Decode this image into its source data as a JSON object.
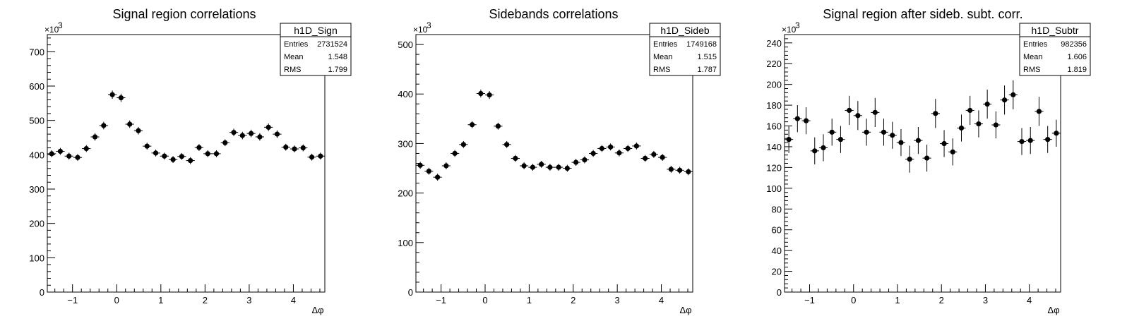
{
  "chart_data": [
    {
      "type": "scatter",
      "title": "Signal region correlations",
      "xlabel": "Δφ",
      "ylabel": "",
      "y_multiplier_label": "×10",
      "y_multiplier_exp": "3",
      "xlim": [
        -1.5708,
        4.7124
      ],
      "ylim": [
        0,
        750
      ],
      "yticks": [
        0,
        100,
        200,
        300,
        400,
        500,
        600,
        700
      ],
      "xticks": [
        -1,
        0,
        1,
        2,
        3,
        4
      ],
      "stats": {
        "name": "h1D_Sign",
        "entries": "2731524",
        "mean": "1.548",
        "rms": "1.799"
      },
      "series": [
        {
          "x": [
            -1.4726,
            -1.2763,
            -1.0799,
            -0.8836,
            -0.6872,
            -0.4909,
            -0.2945,
            -0.0982,
            0.0982,
            0.2945,
            0.4909,
            0.6872,
            0.8836,
            1.0799,
            1.2763,
            1.4726,
            1.669,
            1.8653,
            2.0617,
            2.258,
            2.4544,
            2.6507,
            2.8471,
            3.0434,
            3.2398,
            3.4361,
            3.6325,
            3.8288,
            4.0252,
            4.2215,
            4.4179,
            4.6142
          ],
          "y": [
            403,
            410,
            396,
            392,
            418,
            452,
            485,
            575,
            566,
            489,
            470,
            425,
            405,
            396,
            386,
            395,
            383,
            421,
            403,
            403,
            435,
            465,
            456,
            462,
            452,
            480,
            460,
            422,
            417,
            420,
            393,
            396
          ],
          "err": [
            10,
            10,
            10,
            10,
            10,
            11,
            11,
            12,
            12,
            11,
            11,
            10,
            10,
            10,
            10,
            10,
            10,
            10,
            10,
            10,
            10,
            11,
            11,
            11,
            11,
            11,
            11,
            10,
            10,
            10,
            10,
            10
          ]
        }
      ]
    },
    {
      "type": "scatter",
      "title": "Sidebands correlations",
      "xlabel": "Δφ",
      "ylabel": "",
      "y_multiplier_label": "×10",
      "y_multiplier_exp": "3",
      "xlim": [
        -1.5708,
        4.7124
      ],
      "ylim": [
        0,
        520
      ],
      "yticks": [
        0,
        100,
        200,
        300,
        400,
        500
      ],
      "xticks": [
        -1,
        0,
        1,
        2,
        3,
        4
      ],
      "stats": {
        "name": "h1D_Sideb",
        "entries": "1749168",
        "mean": "1.515",
        "rms": "1.787"
      },
      "series": [
        {
          "x": [
            -1.4726,
            -1.2763,
            -1.0799,
            -0.8836,
            -0.6872,
            -0.4909,
            -0.2945,
            -0.0982,
            0.0982,
            0.2945,
            0.4909,
            0.6872,
            0.8836,
            1.0799,
            1.2763,
            1.4726,
            1.669,
            1.8653,
            2.0617,
            2.258,
            2.4544,
            2.6507,
            2.8471,
            3.0434,
            3.2398,
            3.4361,
            3.6325,
            3.8288,
            4.0252,
            4.2215,
            4.4179,
            4.6142
          ],
          "y": [
            256,
            244,
            232,
            255,
            280,
            298,
            338,
            401,
            398,
            335,
            298,
            270,
            255,
            252,
            258,
            252,
            252,
            250,
            262,
            267,
            280,
            290,
            293,
            281,
            290,
            295,
            270,
            278,
            272,
            248,
            246,
            243
          ],
          "err": [
            7,
            7,
            7,
            7,
            7,
            7,
            7,
            8,
            8,
            7,
            7,
            7,
            7,
            7,
            7,
            7,
            7,
            7,
            7,
            7,
            7,
            7,
            7,
            7,
            7,
            7,
            7,
            7,
            7,
            7,
            7,
            7
          ]
        }
      ]
    },
    {
      "type": "scatter",
      "title": "Signal region after sideb. subt. corr.",
      "xlabel": "Δφ",
      "ylabel": "",
      "y_multiplier_label": "×10",
      "y_multiplier_exp": "3",
      "xlim": [
        -1.5708,
        4.7124
      ],
      "ylim": [
        0,
        248
      ],
      "yticks": [
        0,
        20,
        40,
        60,
        80,
        100,
        120,
        140,
        160,
        180,
        200,
        220,
        240
      ],
      "xticks": [
        -1,
        0,
        1,
        2,
        3,
        4
      ],
      "stats": {
        "name": "h1D_Subtr",
        "entries": "982356",
        "mean": "1.606",
        "rms": "1.819"
      },
      "series": [
        {
          "x": [
            -1.4726,
            -1.2763,
            -1.0799,
            -0.8836,
            -0.6872,
            -0.4909,
            -0.2945,
            -0.0982,
            0.0982,
            0.2945,
            0.4909,
            0.6872,
            0.8836,
            1.0799,
            1.2763,
            1.4726,
            1.669,
            1.8653,
            2.0617,
            2.258,
            2.4544,
            2.6507,
            2.8471,
            3.0434,
            3.2398,
            3.4361,
            3.6325,
            3.8288,
            4.0252,
            4.2215,
            4.4179,
            4.6142
          ],
          "y": [
            147,
            167,
            165,
            136,
            139,
            154,
            147,
            175,
            170,
            154,
            173,
            154,
            151,
            144,
            128,
            146,
            129,
            172,
            143,
            135,
            158,
            175,
            162,
            181,
            161,
            185,
            190,
            145,
            146,
            174,
            147,
            153
          ],
          "err": [
            13,
            13,
            13,
            13,
            13,
            13,
            13,
            14,
            14,
            13,
            14,
            13,
            13,
            13,
            13,
            13,
            13,
            14,
            13,
            13,
            13,
            14,
            13,
            14,
            13,
            14,
            14,
            13,
            13,
            14,
            13,
            13
          ]
        }
      ]
    }
  ]
}
